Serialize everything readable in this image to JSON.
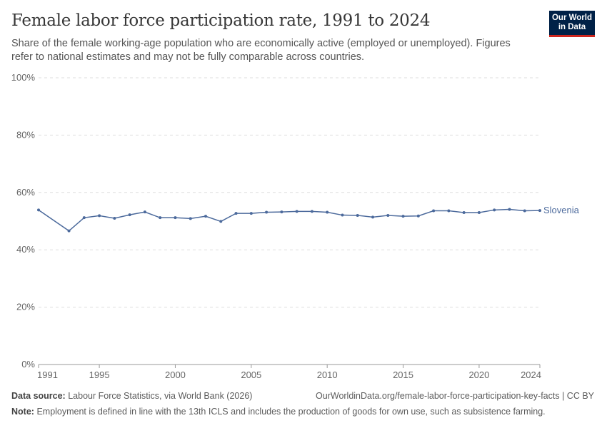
{
  "title": "Female labor force participation rate, 1991 to 2024",
  "subtitle": "Share of the female working-age population who are economically active (employed or unemployed). Figures refer to national estimates and may not be fully comparable across countries.",
  "logo": {
    "line1": "Our World",
    "line2": "in Data"
  },
  "footer": {
    "source_label": "Data source:",
    "source": "Labour Force Statistics, via World Bank (2026)",
    "url": "OurWorldinData.org/female-labor-force-participation-key-facts | CC BY",
    "note_label": "Note:",
    "note": "Employment is defined in line with the 13th ICLS and includes the production of goods for own use, such as subsistence farming."
  },
  "chart_data": {
    "type": "line",
    "title": "Female labor force participation rate, 1991 to 2024",
    "xlim": [
      1991,
      2024
    ],
    "ylim": [
      0,
      100
    ],
    "grid": true,
    "xticks": [
      1991,
      1995,
      2000,
      2005,
      2010,
      2015,
      2020,
      2024
    ],
    "yticks": [
      "0%",
      "20%",
      "40%",
      "60%",
      "80%",
      "100%"
    ],
    "series": [
      {
        "name": "Slovenia",
        "color": "#4c6a9c",
        "x": [
          1991,
          1993,
          1994,
          1995,
          1996,
          1997,
          1998,
          1999,
          2000,
          2001,
          2002,
          2003,
          2004,
          2005,
          2006,
          2007,
          2008,
          2009,
          2010,
          2011,
          2012,
          2013,
          2014,
          2015,
          2016,
          2017,
          2018,
          2019,
          2020,
          2021,
          2022,
          2023,
          2024
        ],
        "y": [
          53.9,
          46.6,
          51.2,
          51.9,
          51.0,
          52.2,
          53.2,
          51.2,
          51.2,
          50.9,
          51.7,
          49.9,
          52.7,
          52.7,
          53.1,
          53.2,
          53.4,
          53.4,
          53.1,
          52.1,
          52.0,
          51.4,
          52.0,
          51.7,
          51.8,
          53.6,
          53.6,
          53.0,
          53.0,
          53.9,
          54.1,
          53.6,
          53.7
        ]
      }
    ]
  }
}
